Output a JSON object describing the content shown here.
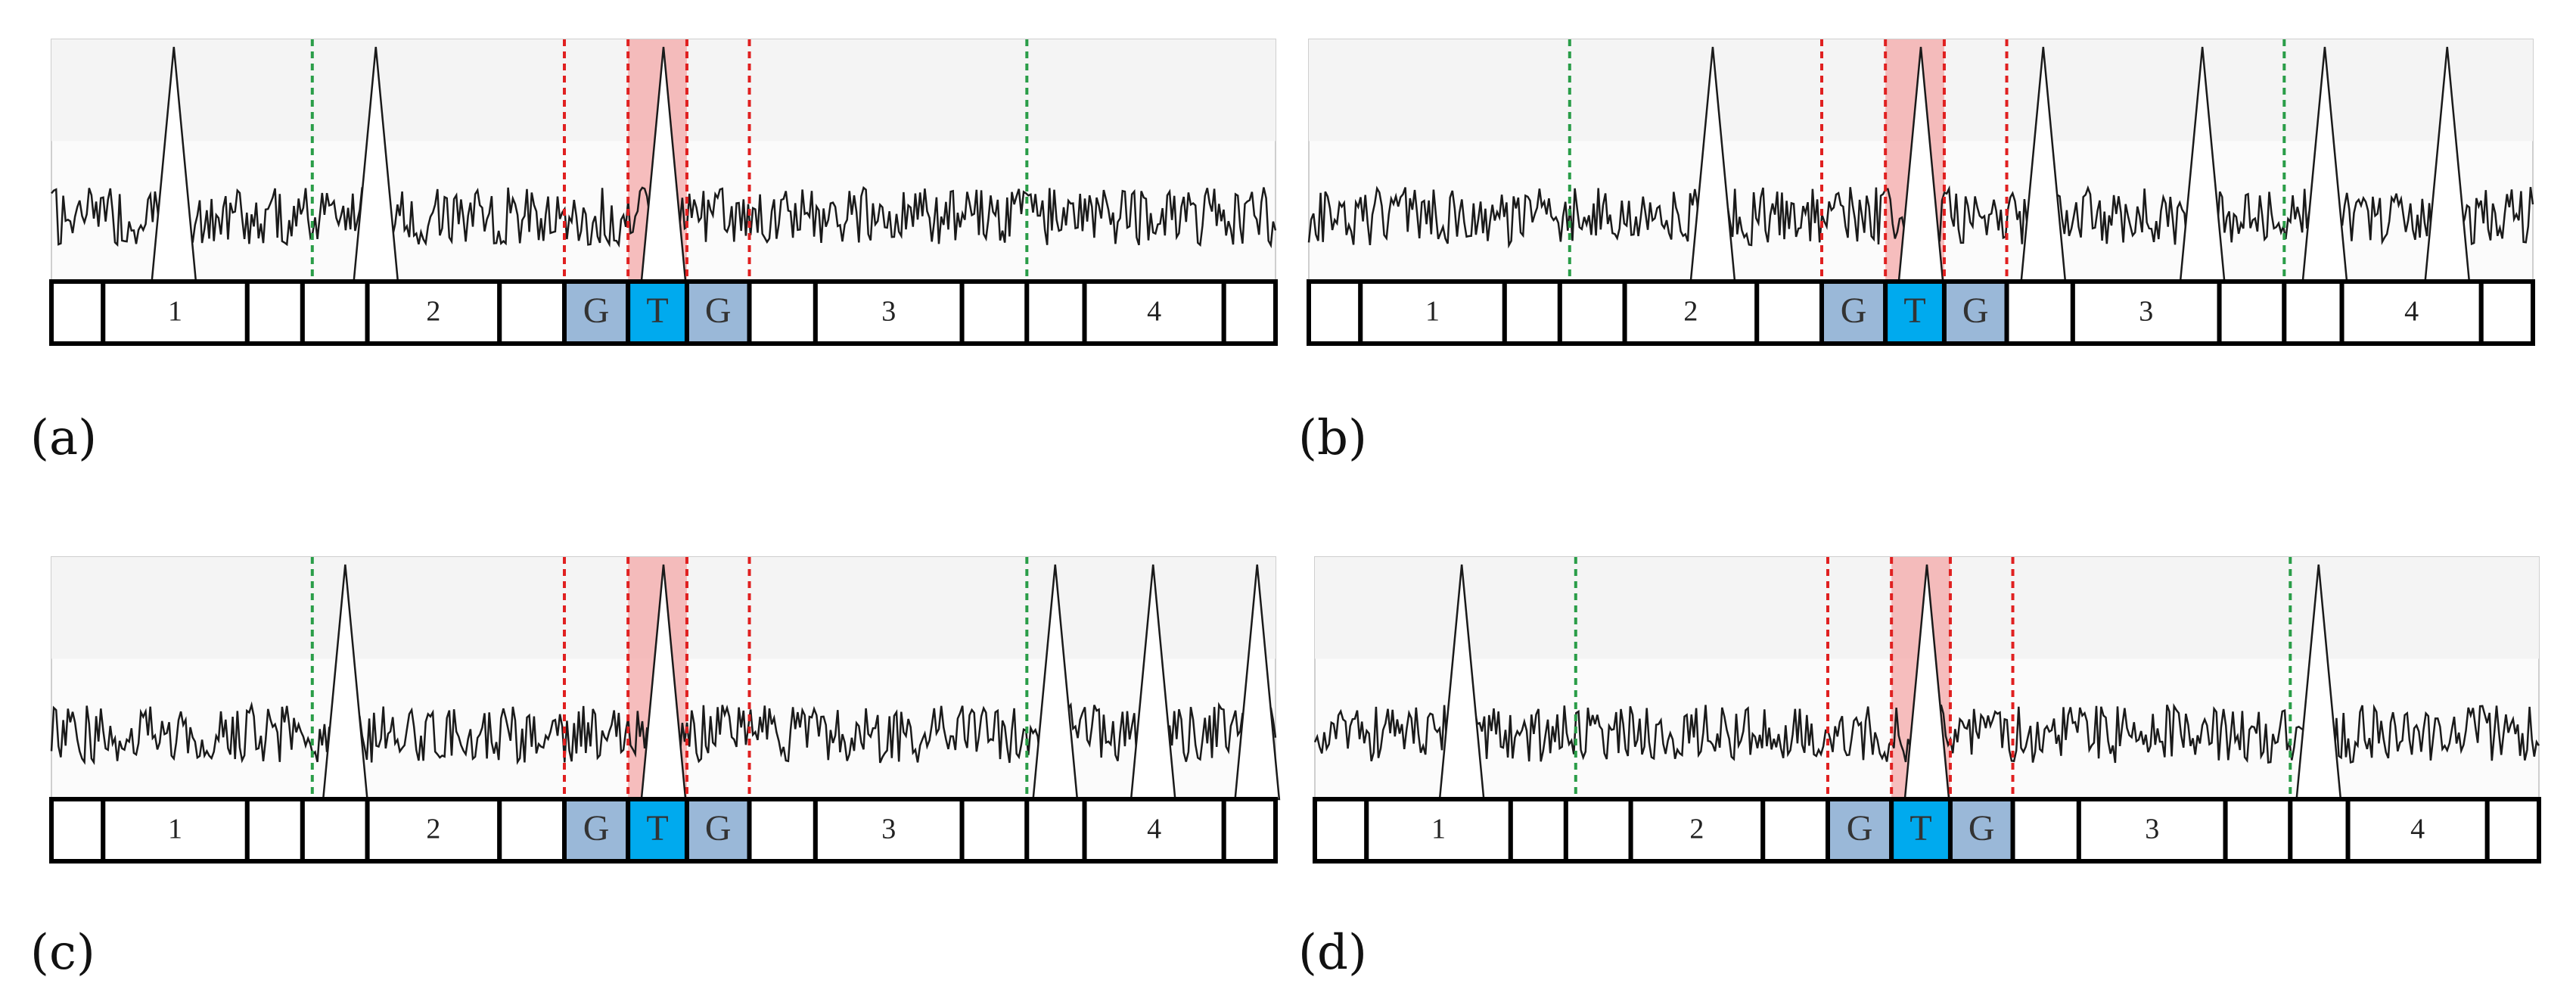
{
  "colors": {
    "background_band": "#f4f4f4",
    "trace": "#1a1a1a",
    "green_boundary": "#2a9d48",
    "red_boundary": "#e02020",
    "highlight": "#f4a8a8",
    "base_flank": "#9ab8d8",
    "base_center": "#00aaee"
  },
  "segment_labels": [
    "1",
    "2",
    "3",
    "4"
  ],
  "panels": [
    {
      "id": "a",
      "label": "(a)",
      "bases": [
        "G",
        "T",
        "G"
      ],
      "peak_positions": [
        0.1,
        0.265,
        0.5
      ]
    },
    {
      "id": "b",
      "label": "(b)",
      "bases": [
        "G",
        "T",
        "G"
      ],
      "peak_positions": [
        0.33,
        0.5,
        0.6,
        0.73,
        0.83,
        0.93
      ]
    },
    {
      "id": "c",
      "label": "(c)",
      "bases": [
        "G",
        "T",
        "G"
      ],
      "peak_positions": [
        0.24,
        0.5,
        0.82,
        0.9,
        0.985
      ]
    },
    {
      "id": "d",
      "label": "(d)",
      "bases": [
        "G",
        "T",
        "G"
      ],
      "peak_positions": [
        0.12,
        0.5,
        0.82
      ]
    }
  ]
}
